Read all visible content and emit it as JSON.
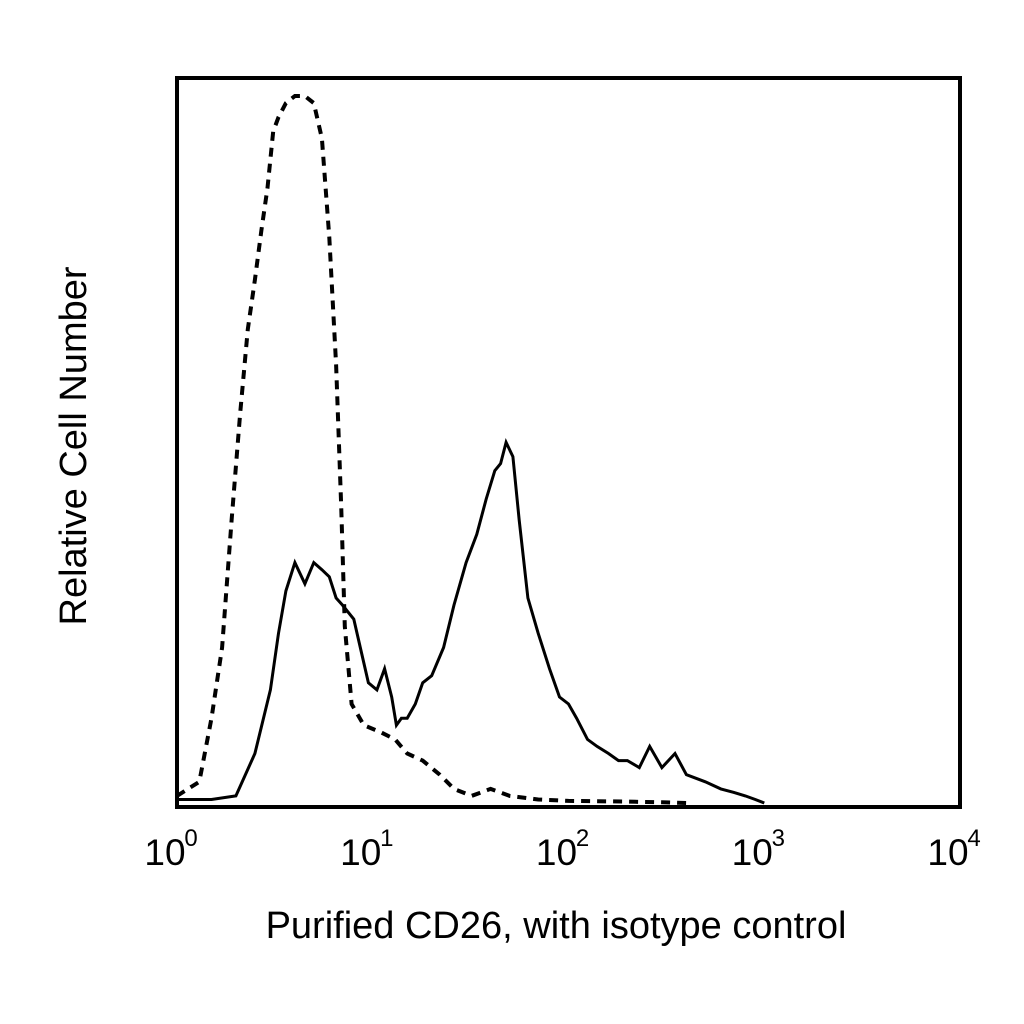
{
  "chart_data": {
    "type": "line",
    "title": "",
    "xlabel": "Purified CD26, with isotype control",
    "ylabel": "Relative Cell Number",
    "x_scale": "log",
    "xlim": [
      1,
      10000
    ],
    "ylim": [
      0,
      100
    ],
    "grid": false,
    "legend": "none",
    "x_ticks": [
      {
        "value": 1,
        "base": "10",
        "exp": "0"
      },
      {
        "value": 10,
        "base": "10",
        "exp": "1"
      },
      {
        "value": 100,
        "base": "10",
        "exp": "2"
      },
      {
        "value": 1000,
        "base": "10",
        "exp": "3"
      },
      {
        "value": 10000,
        "base": "10",
        "exp": "4"
      }
    ],
    "series": [
      {
        "style": "dashed",
        "color": "#000000",
        "points": [
          [
            1.0,
            1
          ],
          [
            1.3,
            3
          ],
          [
            1.5,
            12
          ],
          [
            1.7,
            22
          ],
          [
            1.9,
            40
          ],
          [
            2.1,
            55
          ],
          [
            2.3,
            67
          ],
          [
            2.5,
            74
          ],
          [
            2.7,
            81
          ],
          [
            2.9,
            87
          ],
          [
            3.1,
            95
          ],
          [
            3.3,
            97
          ],
          [
            3.6,
            99
          ],
          [
            4.0,
            100
          ],
          [
            4.5,
            100
          ],
          [
            5.0,
            99
          ],
          [
            5.5,
            94
          ],
          [
            6.0,
            80
          ],
          [
            6.5,
            62
          ],
          [
            6.9,
            42
          ],
          [
            7.2,
            25
          ],
          [
            7.8,
            14
          ],
          [
            9.0,
            11
          ],
          [
            11.0,
            10
          ],
          [
            13.0,
            9
          ],
          [
            15.0,
            7
          ],
          [
            18.0,
            6
          ],
          [
            22.0,
            4
          ],
          [
            26.0,
            2
          ],
          [
            32.0,
            1
          ],
          [
            40.0,
            2
          ],
          [
            50.0,
            1
          ],
          [
            70.0,
            0.5
          ],
          [
            100.0,
            0.3
          ],
          [
            200.0,
            0.2
          ],
          [
            300.0,
            0.1
          ],
          [
            400.0,
            0
          ]
        ]
      },
      {
        "style": "solid",
        "color": "#000000",
        "points": [
          [
            1.0,
            0.5
          ],
          [
            1.5,
            0.5
          ],
          [
            2.0,
            1
          ],
          [
            2.5,
            7
          ],
          [
            3.0,
            16
          ],
          [
            3.3,
            24
          ],
          [
            3.6,
            30
          ],
          [
            4.0,
            34
          ],
          [
            4.5,
            31
          ],
          [
            5.0,
            34
          ],
          [
            5.5,
            33
          ],
          [
            6.0,
            32
          ],
          [
            6.5,
            29
          ],
          [
            7.0,
            28
          ],
          [
            8.0,
            26
          ],
          [
            8.8,
            21
          ],
          [
            9.5,
            17
          ],
          [
            10.5,
            16
          ],
          [
            11.5,
            19
          ],
          [
            12.5,
            15
          ],
          [
            13.2,
            11
          ],
          [
            14.0,
            12
          ],
          [
            15.0,
            12
          ],
          [
            16.5,
            14
          ],
          [
            18.0,
            17
          ],
          [
            20.0,
            18
          ],
          [
            23.0,
            22
          ],
          [
            26.0,
            28
          ],
          [
            30.0,
            34
          ],
          [
            34.0,
            38
          ],
          [
            38.0,
            43
          ],
          [
            42.0,
            47
          ],
          [
            45.0,
            48
          ],
          [
            48.0,
            51
          ],
          [
            52.0,
            49
          ],
          [
            56.0,
            40
          ],
          [
            62.0,
            29
          ],
          [
            70.0,
            24
          ],
          [
            80.0,
            19
          ],
          [
            90.0,
            15
          ],
          [
            100.0,
            14
          ],
          [
            110.0,
            12
          ],
          [
            125.0,
            9
          ],
          [
            140.0,
            8
          ],
          [
            160.0,
            7
          ],
          [
            180.0,
            6
          ],
          [
            200.0,
            6
          ],
          [
            230.0,
            5
          ],
          [
            260.0,
            8
          ],
          [
            300.0,
            5
          ],
          [
            350.0,
            7
          ],
          [
            400.0,
            4
          ],
          [
            500.0,
            3
          ],
          [
            600.0,
            2
          ],
          [
            700.0,
            1.5
          ],
          [
            800.0,
            1
          ],
          [
            900.0,
            0.5
          ],
          [
            1000.0,
            0
          ]
        ]
      }
    ]
  }
}
